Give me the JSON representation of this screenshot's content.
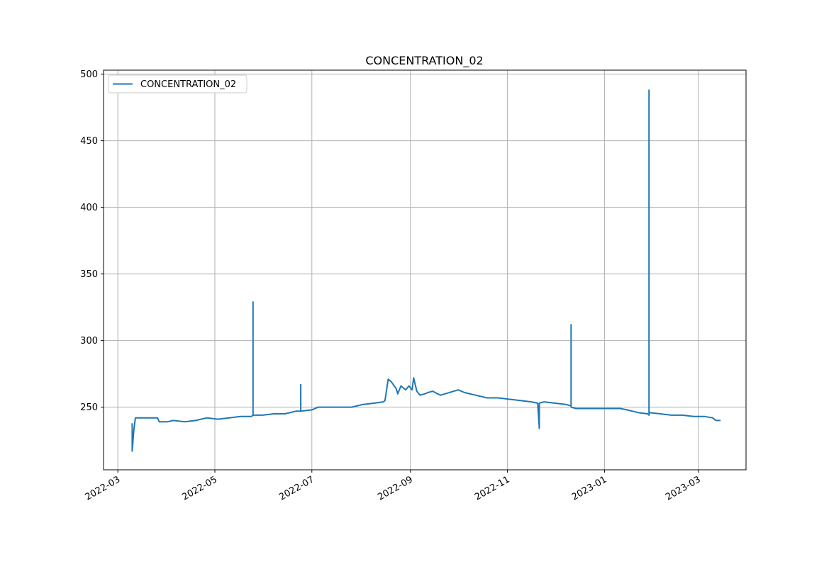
{
  "chart_data": {
    "type": "line",
    "title": "CONCENTRATION_02",
    "xlabel": "",
    "ylabel": "",
    "x_ticks": [
      "2022-03",
      "2022-05",
      "2022-07",
      "2022-09",
      "2022-11",
      "2023-01",
      "2023-03"
    ],
    "y_ticks": [
      250,
      300,
      350,
      400,
      450,
      500
    ],
    "xlim": [
      "2022-02-20",
      "2023-03-31"
    ],
    "ylim": [
      203,
      503
    ],
    "grid": true,
    "legend": "top-left",
    "series": [
      {
        "name": "CONCENTRATION_02",
        "color": "#1f77b4",
        "points": [
          [
            "2022-03-10",
            238
          ],
          [
            "2022-03-10",
            217
          ],
          [
            "2022-03-11",
            232
          ],
          [
            "2022-03-12",
            242
          ],
          [
            "2022-03-20",
            242
          ],
          [
            "2022-03-26",
            242
          ],
          [
            "2022-03-27",
            239
          ],
          [
            "2022-04-01",
            239
          ],
          [
            "2022-04-05",
            240
          ],
          [
            "2022-04-12",
            239
          ],
          [
            "2022-04-19",
            240
          ],
          [
            "2022-04-26",
            242
          ],
          [
            "2022-05-03",
            241
          ],
          [
            "2022-05-10",
            242
          ],
          [
            "2022-05-17",
            243
          ],
          [
            "2022-05-24",
            243
          ],
          [
            "2022-05-25",
            244
          ],
          [
            "2022-05-25",
            329
          ],
          [
            "2022-05-25",
            244
          ],
          [
            "2022-05-31",
            244
          ],
          [
            "2022-06-07",
            245
          ],
          [
            "2022-06-14",
            245
          ],
          [
            "2022-06-21",
            247
          ],
          [
            "2022-06-24",
            247
          ],
          [
            "2022-06-24",
            267
          ],
          [
            "2022-06-24",
            247
          ],
          [
            "2022-07-01",
            248
          ],
          [
            "2022-07-05",
            250
          ],
          [
            "2022-07-12",
            250
          ],
          [
            "2022-07-19",
            250
          ],
          [
            "2022-07-26",
            250
          ],
          [
            "2022-08-02",
            252
          ],
          [
            "2022-08-09",
            253
          ],
          [
            "2022-08-15",
            254
          ],
          [
            "2022-08-16",
            255
          ],
          [
            "2022-08-18",
            271
          ],
          [
            "2022-08-20",
            269
          ],
          [
            "2022-08-23",
            264
          ],
          [
            "2022-08-24",
            260
          ],
          [
            "2022-08-26",
            266
          ],
          [
            "2022-08-29",
            263
          ],
          [
            "2022-08-31",
            266
          ],
          [
            "2022-09-02",
            263
          ],
          [
            "2022-09-03",
            272
          ],
          [
            "2022-09-05",
            262
          ],
          [
            "2022-09-07",
            259
          ],
          [
            "2022-09-10",
            260
          ],
          [
            "2022-09-12",
            261
          ],
          [
            "2022-09-15",
            262
          ],
          [
            "2022-09-18",
            260
          ],
          [
            "2022-09-20",
            259
          ],
          [
            "2022-10-01",
            263
          ],
          [
            "2022-10-05",
            261
          ],
          [
            "2022-10-12",
            259
          ],
          [
            "2022-10-19",
            257
          ],
          [
            "2022-10-26",
            257
          ],
          [
            "2022-11-02",
            256
          ],
          [
            "2022-11-09",
            255
          ],
          [
            "2022-11-16",
            254
          ],
          [
            "2022-11-20",
            253
          ],
          [
            "2022-11-21",
            234
          ],
          [
            "2022-11-21",
            253
          ],
          [
            "2022-11-24",
            254
          ],
          [
            "2022-12-01",
            253
          ],
          [
            "2022-12-08",
            252
          ],
          [
            "2022-12-11",
            251
          ],
          [
            "2022-12-11",
            312
          ],
          [
            "2022-12-11",
            250
          ],
          [
            "2022-12-14",
            249
          ],
          [
            "2022-12-21",
            249
          ],
          [
            "2022-12-28",
            249
          ],
          [
            "2023-01-04",
            249
          ],
          [
            "2023-01-11",
            249
          ],
          [
            "2023-01-15",
            248
          ],
          [
            "2023-01-22",
            246
          ],
          [
            "2023-01-28",
            245
          ],
          [
            "2023-01-29",
            244
          ],
          [
            "2023-01-29",
            488
          ],
          [
            "2023-01-29",
            246
          ],
          [
            "2023-02-05",
            245
          ],
          [
            "2023-02-12",
            244
          ],
          [
            "2023-02-19",
            244
          ],
          [
            "2023-02-26",
            243
          ],
          [
            "2023-03-05",
            243
          ],
          [
            "2023-03-10",
            242
          ],
          [
            "2023-03-12",
            240
          ],
          [
            "2023-03-15",
            240
          ]
        ]
      }
    ]
  }
}
